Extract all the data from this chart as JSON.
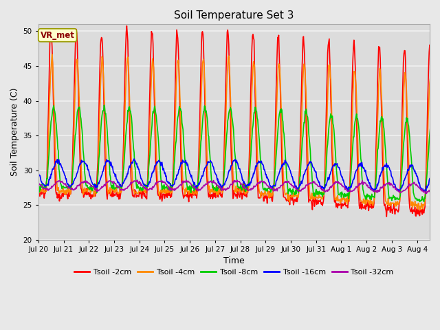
{
  "title": "Soil Temperature Set 3",
  "xlabel": "Time",
  "ylabel": "Soil Temperature (C)",
  "ylim": [
    20,
    51
  ],
  "yticks": [
    20,
    25,
    30,
    35,
    40,
    45,
    50
  ],
  "fig_bg_color": "#e8e8e8",
  "plot_bg_color": "#dcdcdc",
  "grid_color": "#f0f0f0",
  "annotation_text": "VR_met",
  "series": [
    {
      "label": "Tsoil -2cm",
      "color": "#ff0000",
      "lw": 1.2
    },
    {
      "label": "Tsoil -4cm",
      "color": "#ff8800",
      "lw": 1.2
    },
    {
      "label": "Tsoil -8cm",
      "color": "#00cc00",
      "lw": 1.2
    },
    {
      "label": "Tsoil -16cm",
      "color": "#0000ff",
      "lw": 1.2
    },
    {
      "label": "Tsoil -32cm",
      "color": "#aa00aa",
      "lw": 1.2
    }
  ],
  "xtick_labels": [
    "Jul 20",
    "Jul 21",
    "Jul 22",
    "Jul 23",
    "Jul 24",
    "Jul 25",
    "Jul 26",
    "Jul 27",
    "Jul 28",
    "Jul 29",
    "Jul 30",
    "Jul 31",
    "Aug 1",
    "Aug 2",
    "Aug 3",
    "Aug 4"
  ],
  "figsize": [
    6.4,
    4.8
  ],
  "dpi": 100
}
